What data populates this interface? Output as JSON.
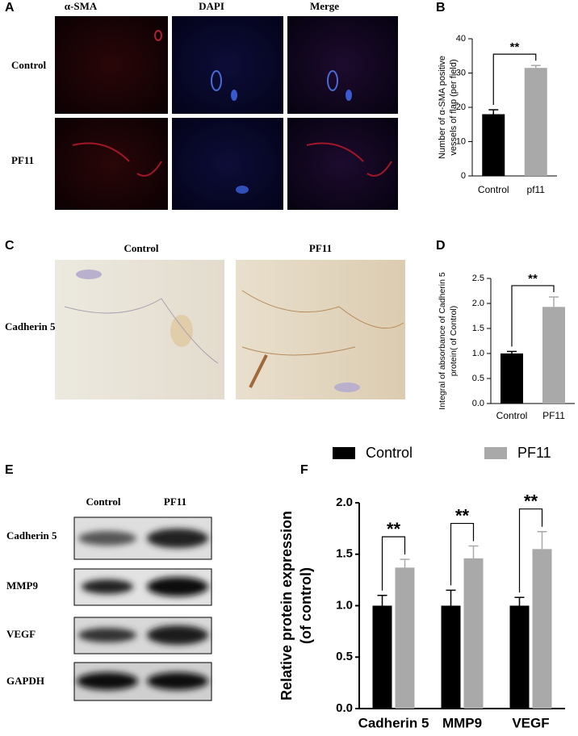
{
  "panels": {
    "A": {
      "label": "A",
      "columns": [
        "α-SMA",
        "DAPI",
        "Merge"
      ],
      "rows": [
        "Control",
        "PF11"
      ]
    },
    "C": {
      "label": "C",
      "columns": [
        "Control",
        "PF11"
      ],
      "rows": [
        "Cadherin 5"
      ]
    },
    "E": {
      "label": "E",
      "columns": [
        "Control",
        "PF11"
      ],
      "rows": [
        "Cadherin 5",
        "MMP9",
        "VEGF",
        "GAPDH"
      ]
    }
  },
  "chart_data": [
    {
      "type": "bar",
      "label": "B",
      "ylabel": [
        "Number of α-SMA positive",
        "vessels of flap (per field)"
      ],
      "categories": [
        "Control",
        "pf11"
      ],
      "values": [
        18,
        31.5
      ],
      "errors": [
        1.3,
        0.7
      ],
      "colors": [
        "#000000",
        "#a9a9a9"
      ],
      "significance": "**",
      "ylim": [
        0,
        40
      ],
      "yticks": [
        0,
        10,
        20,
        30,
        40
      ]
    },
    {
      "type": "bar",
      "label": "D",
      "ylabel": [
        "Integral of absorbance of Cadherin 5",
        "protein( of Control)"
      ],
      "categories": [
        "Control",
        "PF11"
      ],
      "values": [
        1.0,
        1.93
      ],
      "errors": [
        0.04,
        0.2
      ],
      "colors": [
        "#000000",
        "#a9a9a9"
      ],
      "significance": "**",
      "ylim": [
        0,
        2.5
      ],
      "yticks": [
        {
          "value": 0,
          "label": "0.0"
        },
        0.5,
        {
          "value": 1,
          "label": "1.0"
        },
        1.5,
        {
          "value": 2,
          "label": "2.0"
        },
        2.5
      ]
    },
    {
      "type": "grouped-bar",
      "label": "F",
      "ylabel": [
        "Relative protein expression",
        "(of control)"
      ],
      "categories": [
        "Cadherin 5",
        "MMP9",
        "VEGF"
      ],
      "series": [
        {
          "name": "Control",
          "color": "#000000",
          "values": [
            1.0,
            1.0,
            1.0
          ],
          "errors": [
            0.1,
            0.15,
            0.08
          ]
        },
        {
          "name": "PF11",
          "color": "#a9a9a9",
          "values": [
            1.37,
            1.46,
            1.55
          ],
          "errors": [
            0.08,
            0.12,
            0.17
          ]
        }
      ],
      "significance": [
        "**",
        "**",
        "**"
      ],
      "ylim": [
        0,
        2
      ],
      "yticks": [
        {
          "value": 0,
          "label": "0.0"
        },
        0.5,
        {
          "value": 1,
          "label": "1.0"
        },
        1.5,
        {
          "value": 2,
          "label": "2.0"
        }
      ]
    }
  ]
}
